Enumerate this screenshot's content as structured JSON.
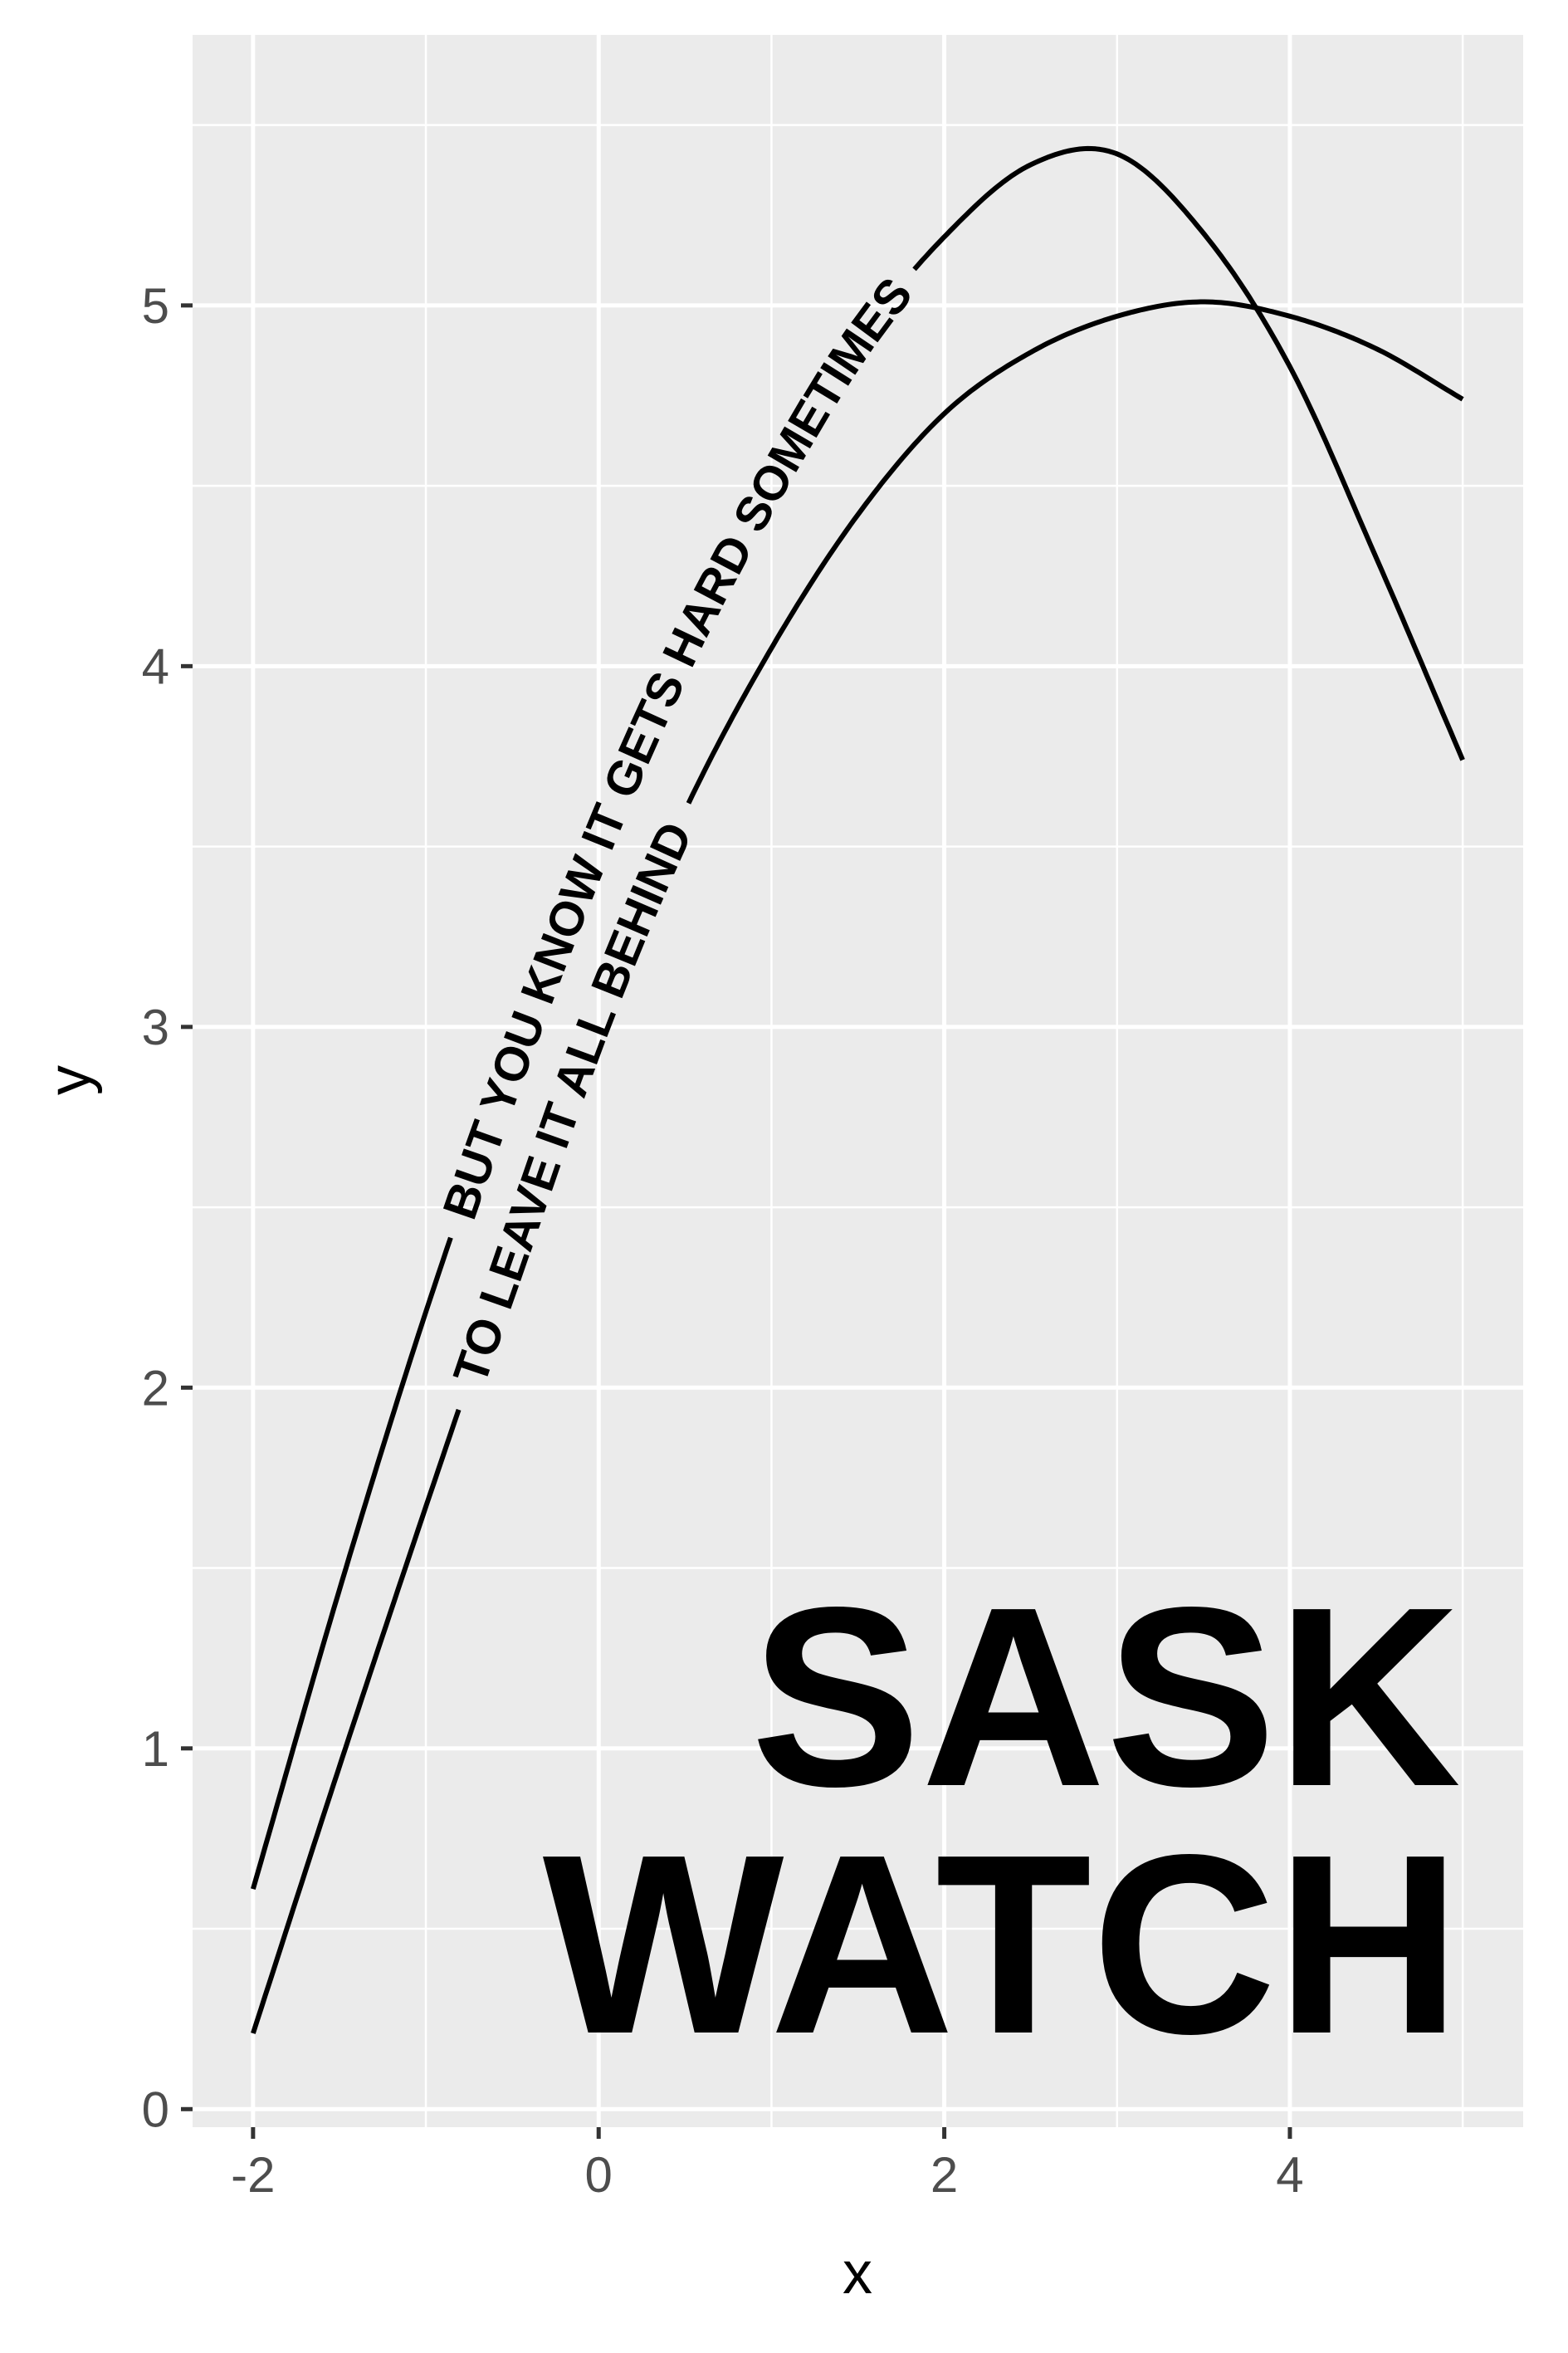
{
  "chart_data": {
    "type": "line",
    "title": "",
    "xlabel": "x",
    "ylabel": "y",
    "xlim": [
      -2.35,
      5.35
    ],
    "ylim": [
      -0.05,
      5.75
    ],
    "x_ticks": [
      -2,
      0,
      2,
      4
    ],
    "x_tick_labels": [
      "-2",
      "0",
      "2",
      "4"
    ],
    "x_minor_ticks": [
      -1,
      1,
      3,
      5
    ],
    "y_ticks": [
      0,
      1,
      2,
      3,
      4,
      5
    ],
    "y_tick_labels": [
      "0",
      "1",
      "2",
      "3",
      "4",
      "5"
    ],
    "y_minor_ticks": [
      0.5,
      1.5,
      2.5,
      3.5,
      4.5,
      5.5
    ],
    "grid": true,
    "panel_background": "#ebebeb",
    "grid_color": "#ffffff",
    "line_color": "#000000",
    "series": [
      {
        "label": "BUT YOU KNOW IT GETS HARD SOMETIMES",
        "x": [
          -2,
          -1.5,
          -1,
          -0.5,
          0,
          0.5,
          1,
          1.5,
          2,
          2.5,
          3,
          3.5,
          4,
          4.5,
          5
        ],
        "y": [
          0.61,
          1.44,
          2.21,
          2.9,
          3.52,
          4.06,
          4.51,
          4.9,
          5.19,
          5.39,
          5.42,
          5.2,
          4.83,
          4.3,
          3.74
        ]
      },
      {
        "label": "TO LEAVE IT ALL BEHIND",
        "x": [
          -2,
          -1.5,
          -1,
          -0.5,
          0,
          0.5,
          1,
          1.5,
          2,
          2.5,
          3,
          3.5,
          4,
          4.5,
          5
        ],
        "y": [
          0.21,
          0.95,
          1.67,
          2.37,
          3.04,
          3.6,
          4.05,
          4.42,
          4.7,
          4.87,
          4.97,
          5.01,
          4.97,
          4.88,
          4.74
        ]
      }
    ],
    "annotation": [
      "SASK",
      "WATCH"
    ]
  }
}
